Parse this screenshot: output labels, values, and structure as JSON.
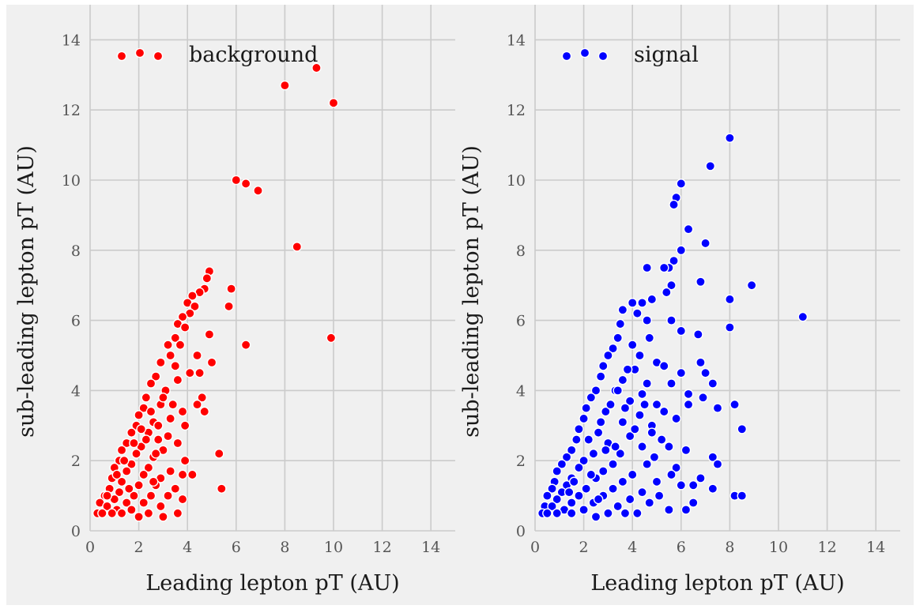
{
  "chart_data": [
    {
      "type": "scatter",
      "xlabel": "Leading lepton pT (AU)",
      "ylabel": "sub-leading lepton pT (AU)",
      "xlim": [
        0,
        15
      ],
      "ylim": [
        0,
        15
      ],
      "x_ticks": [
        "0",
        "2",
        "4",
        "6",
        "8",
        "10",
        "12",
        "14"
      ],
      "y_ticks": [
        "0",
        "2",
        "4",
        "6",
        "8",
        "10",
        "12",
        "14"
      ],
      "grid": true,
      "legend_position": "top-left",
      "series": [
        {
          "name": "background",
          "color": "#ff0000",
          "points": [
            [
              9.3,
              13.2
            ],
            [
              8.0,
              12.7
            ],
            [
              10.0,
              12.2
            ],
            [
              6.0,
              10.0
            ],
            [
              6.4,
              9.9
            ],
            [
              6.9,
              9.7
            ],
            [
              8.5,
              8.1
            ],
            [
              9.9,
              5.5
            ],
            [
              6.4,
              5.3
            ],
            [
              4.9,
              7.4
            ],
            [
              4.8,
              7.2
            ],
            [
              4.7,
              6.9
            ],
            [
              4.5,
              6.8
            ],
            [
              4.2,
              6.7
            ],
            [
              4.0,
              6.5
            ],
            [
              4.3,
              6.4
            ],
            [
              4.1,
              6.2
            ],
            [
              3.8,
              6.1
            ],
            [
              5.8,
              6.9
            ],
            [
              5.7,
              6.4
            ],
            [
              3.6,
              5.9
            ],
            [
              3.9,
              5.8
            ],
            [
              4.9,
              5.6
            ],
            [
              3.5,
              5.5
            ],
            [
              3.7,
              5.3
            ],
            [
              3.2,
              5.3
            ],
            [
              4.4,
              5.0
            ],
            [
              3.3,
              5.0
            ],
            [
              5.0,
              4.8
            ],
            [
              2.9,
              4.8
            ],
            [
              3.5,
              4.7
            ],
            [
              4.1,
              4.5
            ],
            [
              2.7,
              4.4
            ],
            [
              3.6,
              4.3
            ],
            [
              4.5,
              4.5
            ],
            [
              2.5,
              4.2
            ],
            [
              3.1,
              4.0
            ],
            [
              4.6,
              3.8
            ],
            [
              4.4,
              3.6
            ],
            [
              4.7,
              3.4
            ],
            [
              2.3,
              3.8
            ],
            [
              2.9,
              3.6
            ],
            [
              3.8,
              3.4
            ],
            [
              2.2,
              3.5
            ],
            [
              3.3,
              3.2
            ],
            [
              2.0,
              3.3
            ],
            [
              2.6,
              3.1
            ],
            [
              3.9,
              3.0
            ],
            [
              1.9,
              3.0
            ],
            [
              2.4,
              2.8
            ],
            [
              3.2,
              2.7
            ],
            [
              1.7,
              2.8
            ],
            [
              2.8,
              2.6
            ],
            [
              3.6,
              2.5
            ],
            [
              1.5,
              2.5
            ],
            [
              2.1,
              2.4
            ],
            [
              3.0,
              2.3
            ],
            [
              1.3,
              2.3
            ],
            [
              1.9,
              2.2
            ],
            [
              2.6,
              2.1
            ],
            [
              5.3,
              2.2
            ],
            [
              3.9,
              2.0
            ],
            [
              1.2,
              2.0
            ],
            [
              1.7,
              1.9
            ],
            [
              2.4,
              1.8
            ],
            [
              3.3,
              1.7
            ],
            [
              4.2,
              1.6
            ],
            [
              1.0,
              1.8
            ],
            [
              1.5,
              1.7
            ],
            [
              2.2,
              1.6
            ],
            [
              2.9,
              1.5
            ],
            [
              3.8,
              1.6
            ],
            [
              0.9,
              1.5
            ],
            [
              1.3,
              1.4
            ],
            [
              2.0,
              1.3
            ],
            [
              2.7,
              1.3
            ],
            [
              3.5,
              1.2
            ],
            [
              5.4,
              1.2
            ],
            [
              0.8,
              1.2
            ],
            [
              1.2,
              1.1
            ],
            [
              1.8,
              1.0
            ],
            [
              2.5,
              1.0
            ],
            [
              3.2,
              1.0
            ],
            [
              3.8,
              0.9
            ],
            [
              0.6,
              1.0
            ],
            [
              1.0,
              0.9
            ],
            [
              1.5,
              0.8
            ],
            [
              2.2,
              0.8
            ],
            [
              2.9,
              0.7
            ],
            [
              3.6,
              0.5
            ],
            [
              0.4,
              0.8
            ],
            [
              0.7,
              0.7
            ],
            [
              1.1,
              0.6
            ],
            [
              1.7,
              0.6
            ],
            [
              2.4,
              0.5
            ],
            [
              3.0,
              0.4
            ],
            [
              0.3,
              0.5
            ],
            [
              0.5,
              0.5
            ],
            [
              0.9,
              0.5
            ],
            [
              1.3,
              0.5
            ],
            [
              2.0,
              0.4
            ],
            [
              1.6,
              1.2
            ],
            [
              1.4,
              2.0
            ],
            [
              2.3,
              2.6
            ],
            [
              2.8,
              3.0
            ],
            [
              1.8,
              2.5
            ],
            [
              2.5,
              3.4
            ],
            [
              3.0,
              3.8
            ],
            [
              2.1,
              2.9
            ],
            [
              1.1,
              1.6
            ],
            [
              0.7,
              1.0
            ],
            [
              2.7,
              2.2
            ],
            [
              3.4,
              3.6
            ],
            [
              2.6,
              1.4
            ]
          ]
        },
        {
          "name": "signal",
          "color": "#0000ff",
          "points": [
            [
              8.0,
              11.2
            ],
            [
              7.2,
              10.4
            ],
            [
              6.0,
              9.9
            ],
            [
              5.8,
              9.5
            ],
            [
              5.7,
              9.3
            ],
            [
              6.3,
              8.6
            ],
            [
              7.0,
              8.2
            ],
            [
              6.0,
              8.0
            ],
            [
              5.7,
              7.7
            ],
            [
              5.5,
              7.5
            ],
            [
              5.3,
              7.5
            ],
            [
              4.6,
              7.5
            ],
            [
              6.8,
              7.1
            ],
            [
              8.9,
              7.0
            ],
            [
              5.6,
              7.0
            ],
            [
              5.4,
              6.8
            ],
            [
              11.0,
              6.1
            ],
            [
              8.0,
              6.6
            ],
            [
              4.8,
              6.6
            ],
            [
              4.4,
              6.5
            ],
            [
              4.0,
              6.5
            ],
            [
              3.6,
              6.3
            ],
            [
              4.2,
              6.2
            ],
            [
              5.6,
              6.0
            ],
            [
              4.6,
              6.0
            ],
            [
              8.0,
              5.8
            ],
            [
              6.0,
              5.7
            ],
            [
              6.7,
              5.6
            ],
            [
              3.5,
              5.9
            ],
            [
              4.7,
              5.5
            ],
            [
              3.4,
              5.5
            ],
            [
              4.0,
              5.3
            ],
            [
              3.2,
              5.2
            ],
            [
              3.0,
              5.0
            ],
            [
              4.3,
              5.0
            ],
            [
              5.0,
              4.8
            ],
            [
              6.8,
              4.8
            ],
            [
              5.3,
              4.7
            ],
            [
              2.8,
              4.7
            ],
            [
              4.1,
              4.6
            ],
            [
              6.0,
              4.5
            ],
            [
              7.0,
              4.5
            ],
            [
              2.7,
              4.4
            ],
            [
              3.6,
              4.3
            ],
            [
              4.6,
              4.2
            ],
            [
              5.6,
              4.2
            ],
            [
              7.3,
              4.2
            ],
            [
              2.5,
              4.0
            ],
            [
              3.3,
              4.0
            ],
            [
              4.4,
              3.9
            ],
            [
              6.3,
              3.9
            ],
            [
              6.9,
              3.8
            ],
            [
              2.3,
              3.8
            ],
            [
              3.9,
              3.7
            ],
            [
              5.0,
              3.6
            ],
            [
              6.3,
              3.6
            ],
            [
              7.5,
              3.5
            ],
            [
              8.2,
              3.6
            ],
            [
              2.1,
              3.5
            ],
            [
              2.9,
              3.4
            ],
            [
              4.3,
              3.3
            ],
            [
              5.8,
              3.2
            ],
            [
              2.0,
              3.2
            ],
            [
              3.6,
              3.1
            ],
            [
              4.8,
              3.0
            ],
            [
              8.5,
              2.9
            ],
            [
              1.8,
              2.9
            ],
            [
              2.6,
              2.8
            ],
            [
              3.9,
              2.7
            ],
            [
              5.2,
              2.6
            ],
            [
              1.7,
              2.6
            ],
            [
              3.0,
              2.5
            ],
            [
              4.4,
              2.4
            ],
            [
              5.5,
              2.4
            ],
            [
              6.2,
              2.3
            ],
            [
              1.5,
              2.3
            ],
            [
              2.4,
              2.2
            ],
            [
              3.5,
              2.2
            ],
            [
              4.9,
              2.1
            ],
            [
              7.3,
              2.1
            ],
            [
              1.3,
              2.1
            ],
            [
              2.0,
              2.0
            ],
            [
              3.2,
              1.9
            ],
            [
              4.6,
              1.9
            ],
            [
              7.5,
              1.9
            ],
            [
              5.8,
              1.8
            ],
            [
              1.1,
              1.9
            ],
            [
              1.8,
              1.8
            ],
            [
              2.8,
              1.7
            ],
            [
              4.0,
              1.6
            ],
            [
              5.6,
              1.6
            ],
            [
              6.8,
              1.5
            ],
            [
              0.9,
              1.7
            ],
            [
              1.5,
              1.5
            ],
            [
              2.5,
              1.5
            ],
            [
              3.6,
              1.4
            ],
            [
              5.0,
              1.4
            ],
            [
              6.0,
              1.3
            ],
            [
              6.5,
              1.3
            ],
            [
              0.8,
              1.4
            ],
            [
              1.3,
              1.3
            ],
            [
              2.1,
              1.2
            ],
            [
              3.2,
              1.2
            ],
            [
              4.4,
              1.1
            ],
            [
              7.3,
              1.2
            ],
            [
              0.7,
              1.2
            ],
            [
              1.1,
              1.1
            ],
            [
              1.8,
              1.0
            ],
            [
              2.8,
              1.0
            ],
            [
              3.9,
              0.9
            ],
            [
              5.1,
              1.0
            ],
            [
              8.2,
              1.0
            ],
            [
              8.5,
              1.0
            ],
            [
              0.5,
              1.0
            ],
            [
              0.9,
              0.9
            ],
            [
              1.5,
              0.8
            ],
            [
              2.4,
              0.8
            ],
            [
              3.4,
              0.7
            ],
            [
              4.7,
              0.8
            ],
            [
              6.5,
              0.8
            ],
            [
              0.4,
              0.7
            ],
            [
              0.7,
              0.7
            ],
            [
              1.2,
              0.6
            ],
            [
              2.0,
              0.6
            ],
            [
              3.0,
              0.5
            ],
            [
              4.2,
              0.5
            ],
            [
              5.5,
              0.6
            ],
            [
              6.2,
              0.6
            ],
            [
              0.3,
              0.5
            ],
            [
              0.5,
              0.5
            ],
            [
              0.9,
              0.5
            ],
            [
              1.5,
              0.5
            ],
            [
              2.5,
              0.4
            ],
            [
              3.7,
              0.5
            ],
            [
              1.6,
              1.4
            ],
            [
              2.2,
              2.6
            ],
            [
              2.7,
              3.1
            ],
            [
              3.1,
              3.6
            ],
            [
              3.4,
              4.0
            ],
            [
              3.8,
              4.6
            ],
            [
              2.9,
              2.3
            ],
            [
              3.7,
              3.5
            ],
            [
              4.1,
              2.9
            ],
            [
              4.5,
              3.6
            ],
            [
              1.4,
              1.1
            ],
            [
              2.3,
              1.6
            ],
            [
              3.3,
              2.4
            ],
            [
              4.8,
              2.8
            ],
            [
              5.3,
              3.4
            ],
            [
              2.6,
              0.9
            ]
          ]
        }
      ]
    }
  ]
}
